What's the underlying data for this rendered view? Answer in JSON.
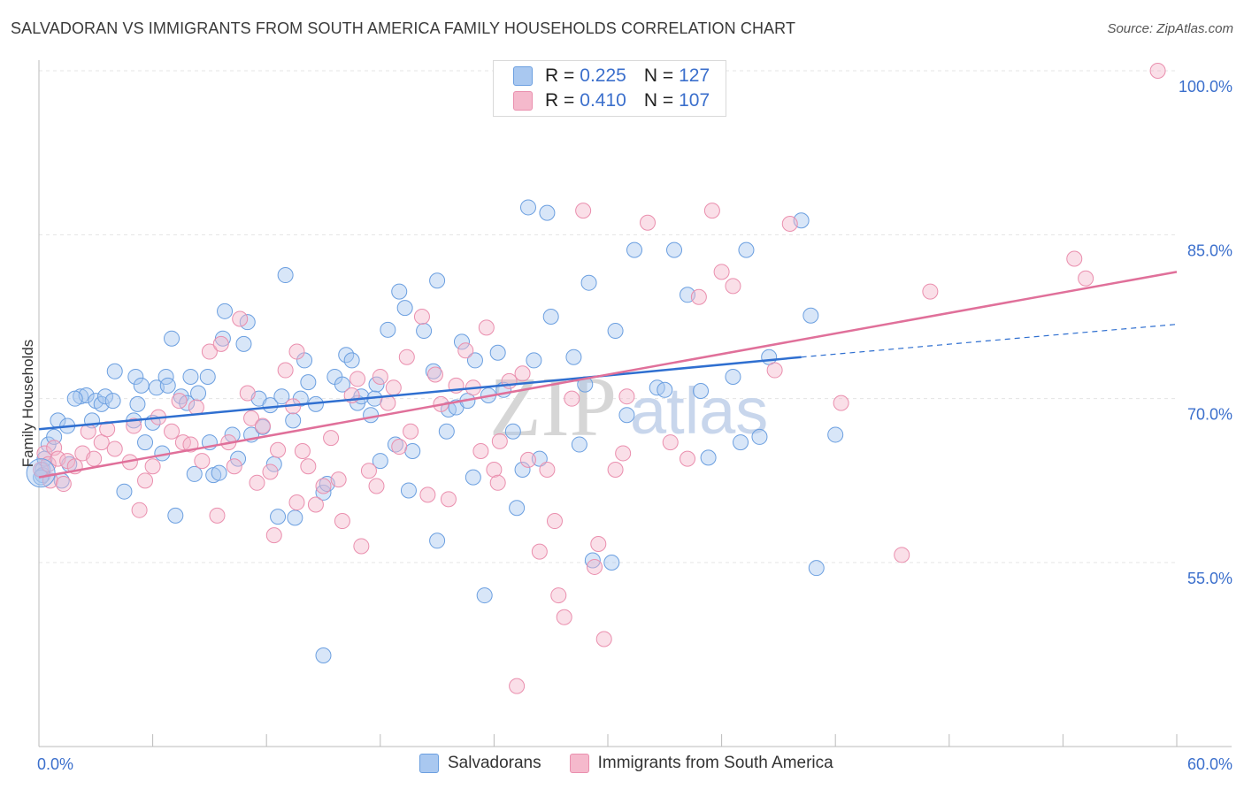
{
  "title": "SALVADORAN VS IMMIGRANTS FROM SOUTH AMERICA FAMILY HOUSEHOLDS CORRELATION CHART",
  "source": "Source: ZipAtlas.com",
  "watermark": {
    "zip": "ZIP",
    "atlas": "atlas"
  },
  "legend": {
    "rows": [
      {
        "r_label": "R =",
        "r_value": "0.225",
        "n_label": "N =",
        "n_value": "127",
        "color": "#a9c8f0"
      },
      {
        "r_label": "R =",
        "r_value": "0.410",
        "n_label": "N =",
        "n_value": "107",
        "color": "#f5b9cc"
      }
    ]
  },
  "bottom_legend": [
    {
      "label": "Salvadorans",
      "color": "#a9c8f0"
    },
    {
      "label": "Immigrants from South America",
      "color": "#f5b9cc"
    }
  ],
  "chart_data": {
    "type": "scatter",
    "title": "SALVADORAN VS IMMIGRANTS FROM SOUTH AMERICA FAMILY HOUSEHOLDS CORRELATION CHART",
    "xlabel": "",
    "ylabel": "Family Households",
    "xlim": [
      0,
      60
    ],
    "ylim": [
      42,
      102
    ],
    "x_tick_labels": [
      "0.0%",
      "60.0%"
    ],
    "y_ticks": [
      55,
      70,
      85,
      100
    ],
    "y_tick_labels": [
      "55.0%",
      "70.0%",
      "85.0%",
      "100.0%"
    ],
    "grid": true,
    "legend_position": "top-center",
    "series": [
      {
        "name": "Salvadorans",
        "color": "#a9c8f0",
        "stroke": "#6b9fe0",
        "trend_color": "#2f6fd0",
        "trend": {
          "x0": 0,
          "y0": 67.2,
          "x1": 40.2,
          "y1": 73.8,
          "dash_to_x": 60,
          "dash_to_y": 76.8
        },
        "points": [
          [
            0.2,
            63.5
          ],
          [
            0.3,
            64.5
          ],
          [
            0.5,
            65.8
          ],
          [
            0.8,
            66.5
          ],
          [
            1,
            68
          ],
          [
            1.2,
            62.5
          ],
          [
            1.5,
            67.5
          ],
          [
            1.6,
            64
          ],
          [
            2.2,
            70.2
          ],
          [
            2.5,
            70.3
          ],
          [
            2.8,
            68
          ],
          [
            3,
            69.8
          ],
          [
            3.3,
            69.5
          ],
          [
            3.5,
            70.2
          ],
          [
            4,
            72.5
          ],
          [
            4.5,
            61.5
          ],
          [
            5,
            68
          ],
          [
            5.1,
            72
          ],
          [
            5.2,
            69.5
          ],
          [
            5.4,
            71.2
          ],
          [
            5.6,
            66
          ],
          [
            6,
            67.8
          ],
          [
            6.2,
            71
          ],
          [
            6.5,
            65
          ],
          [
            6.7,
            72
          ],
          [
            6.8,
            71.2
          ],
          [
            7,
            75.5
          ],
          [
            7.2,
            59.3
          ],
          [
            7.5,
            70.2
          ],
          [
            7.8,
            69.6
          ],
          [
            8,
            72
          ],
          [
            8.4,
            70.5
          ],
          [
            8.9,
            72
          ],
          [
            9,
            66
          ],
          [
            9.2,
            63
          ],
          [
            9.5,
            63.2
          ],
          [
            9.7,
            75.5
          ],
          [
            9.8,
            78
          ],
          [
            10.2,
            66.7
          ],
          [
            10.5,
            64.5
          ],
          [
            10.8,
            75
          ],
          [
            11,
            77
          ],
          [
            11.2,
            66.7
          ],
          [
            11.6,
            70
          ],
          [
            11.8,
            67.4
          ],
          [
            12.2,
            69.4
          ],
          [
            12.4,
            64
          ],
          [
            12.6,
            59.2
          ],
          [
            12.8,
            70.2
          ],
          [
            13,
            81.3
          ],
          [
            13.4,
            68
          ],
          [
            13.8,
            70
          ],
          [
            14,
            73.5
          ],
          [
            14.2,
            71.5
          ],
          [
            14.6,
            69.5
          ],
          [
            15,
            61.4
          ],
          [
            15.2,
            62.2
          ],
          [
            15.6,
            72
          ],
          [
            16,
            71.3
          ],
          [
            16.2,
            74
          ],
          [
            16.5,
            73.5
          ],
          [
            16.8,
            69.6
          ],
          [
            17,
            70.2
          ],
          [
            17.5,
            68.5
          ],
          [
            17.8,
            71.3
          ],
          [
            18,
            64.3
          ],
          [
            18.4,
            76.3
          ],
          [
            18.8,
            65.8
          ],
          [
            19,
            79.8
          ],
          [
            19.3,
            78.3
          ],
          [
            19.5,
            61.6
          ],
          [
            19.7,
            65.2
          ],
          [
            20.3,
            76.2
          ],
          [
            20.8,
            72.5
          ],
          [
            21,
            80.8
          ],
          [
            21.5,
            67
          ],
          [
            21.6,
            69
          ],
          [
            22,
            69.2
          ],
          [
            22.3,
            75.2
          ],
          [
            22.6,
            69.8
          ],
          [
            22.9,
            62.8
          ],
          [
            23,
            73.5
          ],
          [
            23.5,
            52
          ],
          [
            23.7,
            70.3
          ],
          [
            24.2,
            74.2
          ],
          [
            24.5,
            70.8
          ],
          [
            25.2,
            60
          ],
          [
            25.5,
            63.5
          ],
          [
            25.8,
            87.5
          ],
          [
            26.1,
            73.5
          ],
          [
            26.4,
            64.5
          ],
          [
            26.8,
            87
          ],
          [
            27,
            77.5
          ],
          [
            28.2,
            73.8
          ],
          [
            28.5,
            65.8
          ],
          [
            28.8,
            71.3
          ],
          [
            29,
            80.6
          ],
          [
            29.2,
            55.2
          ],
          [
            30.2,
            55
          ],
          [
            30.4,
            76.2
          ],
          [
            31,
            68.5
          ],
          [
            31.4,
            83.6
          ],
          [
            32.6,
            71
          ],
          [
            33.5,
            83.6
          ],
          [
            34.2,
            79.5
          ],
          [
            34.9,
            70.7
          ],
          [
            35.3,
            64.6
          ],
          [
            37,
            66
          ],
          [
            37.3,
            83.6
          ],
          [
            36.6,
            72
          ],
          [
            38.5,
            73.8
          ],
          [
            40.2,
            86.3
          ],
          [
            40.7,
            77.6
          ],
          [
            41,
            54.5
          ],
          [
            42,
            66.7
          ],
          [
            15,
            46.5
          ],
          [
            0.2,
            63
          ],
          [
            0.1,
            62.8
          ],
          [
            1.9,
            70
          ],
          [
            3.9,
            69.8
          ],
          [
            8.2,
            63.1
          ],
          [
            13.5,
            59.1
          ],
          [
            17.7,
            70
          ],
          [
            25,
            67
          ],
          [
            33,
            70.8
          ],
          [
            38,
            66.5
          ],
          [
            21,
            57
          ]
        ]
      },
      {
        "name": "Immigrants from South America",
        "color": "#f5b9cc",
        "stroke": "#ea8fae",
        "trend_color": "#e0709a",
        "trend": {
          "x0": 0,
          "y0": 62.8,
          "x1": 60,
          "y1": 81.6
        },
        "points": [
          [
            0.1,
            63.5
          ],
          [
            0.3,
            65
          ],
          [
            0.5,
            64
          ],
          [
            0.6,
            62.5
          ],
          [
            0.8,
            65.5
          ],
          [
            1,
            64.5
          ],
          [
            1.3,
            62.2
          ],
          [
            1.5,
            64.3
          ],
          [
            1.9,
            63.8
          ],
          [
            2.3,
            65
          ],
          [
            2.6,
            67
          ],
          [
            2.9,
            64.5
          ],
          [
            3.3,
            66
          ],
          [
            3.6,
            67.2
          ],
          [
            4,
            65.4
          ],
          [
            4.8,
            64.2
          ],
          [
            5,
            67.5
          ],
          [
            5.3,
            59.8
          ],
          [
            5.6,
            62.5
          ],
          [
            6,
            63.8
          ],
          [
            6.3,
            68.3
          ],
          [
            7,
            67
          ],
          [
            7.4,
            69.8
          ],
          [
            7.6,
            66
          ],
          [
            8,
            65.8
          ],
          [
            8.3,
            69.2
          ],
          [
            8.6,
            64.3
          ],
          [
            9,
            74.3
          ],
          [
            9.4,
            59.3
          ],
          [
            9.6,
            75
          ],
          [
            10,
            66
          ],
          [
            10.3,
            63.8
          ],
          [
            10.6,
            77.3
          ],
          [
            11,
            70.5
          ],
          [
            11.2,
            68.2
          ],
          [
            11.5,
            62.3
          ],
          [
            11.8,
            67.5
          ],
          [
            12.2,
            63.3
          ],
          [
            12.4,
            57.5
          ],
          [
            12.6,
            65.3
          ],
          [
            13,
            72.6
          ],
          [
            13.4,
            69.3
          ],
          [
            13.6,
            74.3
          ],
          [
            13.9,
            65.2
          ],
          [
            14.2,
            63.8
          ],
          [
            14.6,
            60.3
          ],
          [
            15,
            62
          ],
          [
            15.4,
            66.4
          ],
          [
            15.8,
            62.6
          ],
          [
            16,
            58.8
          ],
          [
            16.5,
            70.3
          ],
          [
            16.8,
            71.8
          ],
          [
            17,
            56.5
          ],
          [
            17.4,
            63.4
          ],
          [
            17.8,
            62
          ],
          [
            18,
            72
          ],
          [
            18.4,
            69.6
          ],
          [
            18.7,
            71
          ],
          [
            19,
            65.6
          ],
          [
            19.4,
            73.8
          ],
          [
            19.6,
            67
          ],
          [
            20.2,
            77.5
          ],
          [
            20.5,
            61.2
          ],
          [
            20.9,
            72.2
          ],
          [
            21.2,
            69.5
          ],
          [
            21.6,
            60.8
          ],
          [
            22,
            71.2
          ],
          [
            22.5,
            74.4
          ],
          [
            22.9,
            71
          ],
          [
            23.3,
            65.2
          ],
          [
            23.6,
            76.5
          ],
          [
            24,
            63.5
          ],
          [
            24.3,
            66.1
          ],
          [
            24.8,
            71.6
          ],
          [
            25.2,
            43.7
          ],
          [
            25.5,
            72.3
          ],
          [
            25.8,
            64.4
          ],
          [
            26.4,
            56
          ],
          [
            26.8,
            63.5
          ],
          [
            27.2,
            58.8
          ],
          [
            27.4,
            52
          ],
          [
            27.7,
            50
          ],
          [
            28.1,
            70
          ],
          [
            28.7,
            87.2
          ],
          [
            29.3,
            54.6
          ],
          [
            29.5,
            56.7
          ],
          [
            29.8,
            48
          ],
          [
            30.4,
            63.5
          ],
          [
            30.8,
            65
          ],
          [
            31,
            70.2
          ],
          [
            32.1,
            86.1
          ],
          [
            33.3,
            66
          ],
          [
            34.2,
            64.5
          ],
          [
            34.8,
            79.3
          ],
          [
            35.5,
            87.2
          ],
          [
            36,
            81.6
          ],
          [
            36.6,
            80.3
          ],
          [
            38.8,
            72.6
          ],
          [
            39.6,
            86
          ],
          [
            42.3,
            69.6
          ],
          [
            45.5,
            55.7
          ],
          [
            47,
            79.8
          ],
          [
            54.6,
            82.8
          ],
          [
            55.2,
            81
          ],
          [
            59,
            100
          ],
          [
            24.2,
            62.3
          ],
          [
            13.6,
            60.5
          ]
        ]
      }
    ]
  }
}
